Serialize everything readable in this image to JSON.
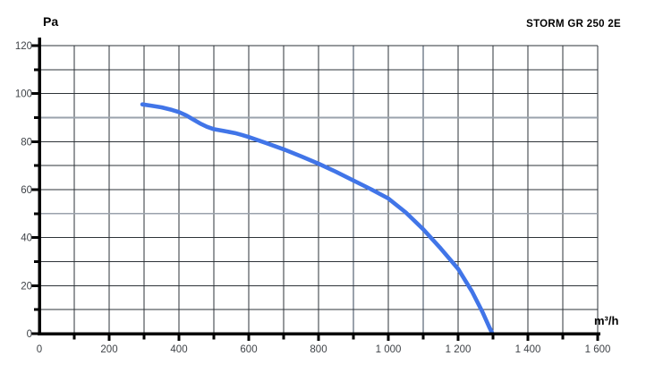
{
  "header": {
    "ylabel": "Pa",
    "title": "STORM GR 250 2E",
    "xlabel": "m³/h"
  },
  "chart_data": {
    "type": "line",
    "title": "STORM GR 250 2E",
    "xlabel": "m³/h",
    "ylabel": "Pa",
    "xlim": [
      0,
      1600
    ],
    "ylim": [
      0,
      120
    ],
    "x_minor_step": 100,
    "x_major_step": 200,
    "y_minor_step": 10,
    "y_major_step": 20,
    "grid": "on-every-minor",
    "legend": "none",
    "x_tick_labels": [
      {
        "value": 0,
        "label": "0"
      },
      {
        "value": 200,
        "label": "200"
      },
      {
        "value": 400,
        "label": "400"
      },
      {
        "value": 600,
        "label": "600"
      },
      {
        "value": 800,
        "label": "800"
      },
      {
        "value": 1000,
        "label": "1 000"
      },
      {
        "value": 1200,
        "label": "1 200"
      },
      {
        "value": 1400,
        "label": "1 400"
      },
      {
        "value": 1600,
        "label": "1 600"
      }
    ],
    "y_tick_labels": [
      {
        "value": 0,
        "label": "0"
      },
      {
        "value": 20,
        "label": "20"
      },
      {
        "value": 40,
        "label": "40"
      },
      {
        "value": 60,
        "label": "60"
      },
      {
        "value": 80,
        "label": "80"
      },
      {
        "value": 100,
        "label": "100"
      },
      {
        "value": 120,
        "label": "120"
      }
    ],
    "light_gridlines": {
      "horizontal_pa": [
        50,
        90
      ],
      "vertical_m3h": [
        900,
        1100
      ]
    },
    "series": [
      {
        "name": "STORM GR 250 2E fan curve",
        "color": "#4175e8",
        "stroke_width": 4.6,
        "points": [
          [
            295,
            95.5
          ],
          [
            320,
            95.0
          ],
          [
            350,
            94.3
          ],
          [
            380,
            93.2
          ],
          [
            400,
            92.3
          ],
          [
            420,
            91.0
          ],
          [
            440,
            89.3
          ],
          [
            460,
            87.6
          ],
          [
            480,
            86.2
          ],
          [
            500,
            85.2
          ],
          [
            530,
            84.4
          ],
          [
            560,
            83.6
          ],
          [
            580,
            82.8
          ],
          [
            600,
            81.9
          ],
          [
            650,
            79.4
          ],
          [
            700,
            76.8
          ],
          [
            750,
            73.9
          ],
          [
            800,
            70.8
          ],
          [
            850,
            67.4
          ],
          [
            900,
            63.8
          ],
          [
            950,
            60.2
          ],
          [
            1000,
            56.3
          ],
          [
            1050,
            50.5
          ],
          [
            1100,
            43.5
          ],
          [
            1150,
            35.5
          ],
          [
            1200,
            27.0
          ],
          [
            1240,
            17.5
          ],
          [
            1270,
            9.0
          ],
          [
            1290,
            2.5
          ],
          [
            1297,
            0.5
          ]
        ]
      }
    ],
    "colors": {
      "curve": "#4175e8",
      "grid_dark": "#2e3338",
      "grid_light": "#9aa2ac",
      "axis": "#000000",
      "tick_label": "#3f4348",
      "background": "#ffffff"
    }
  }
}
